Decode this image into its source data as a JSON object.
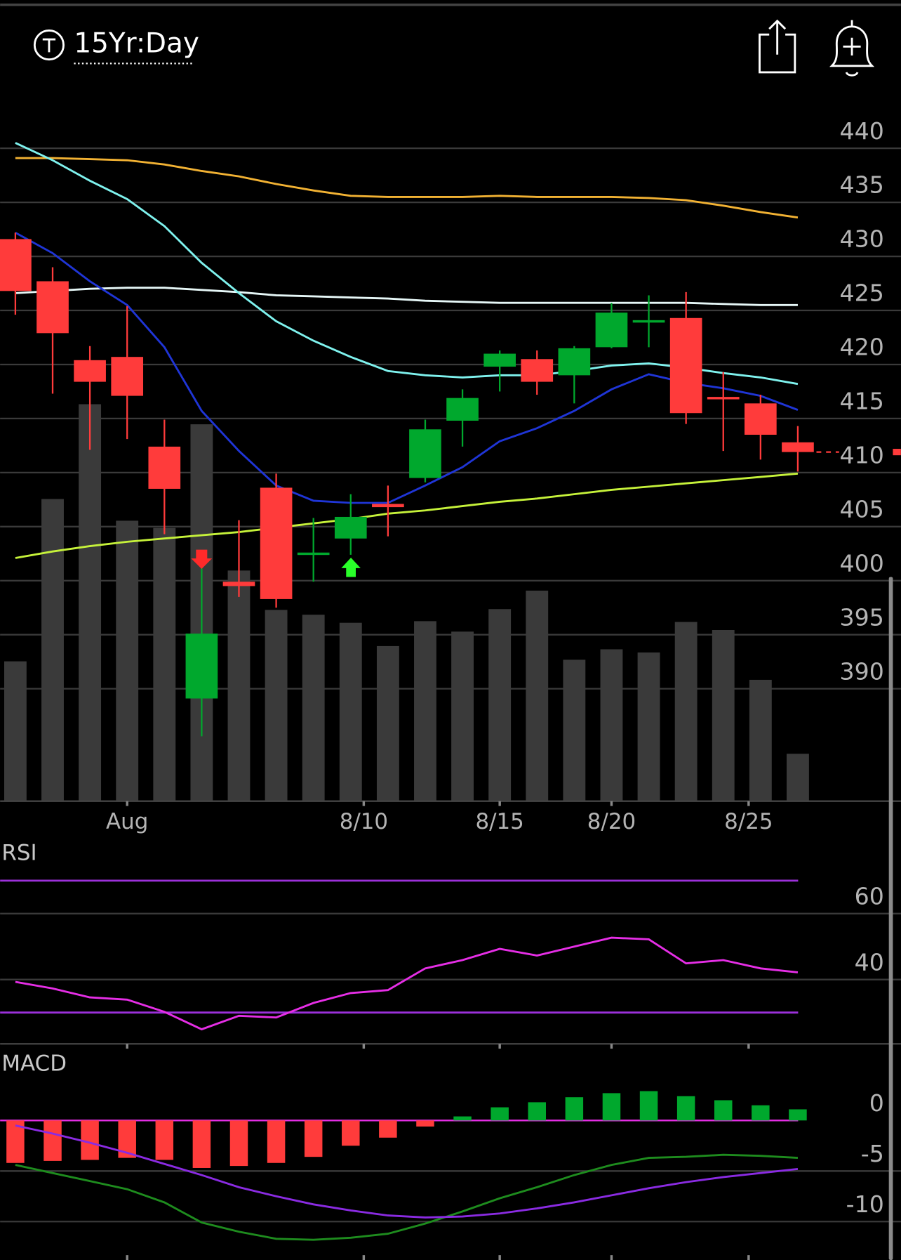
{
  "header": {
    "timeframe": "15Yr:Day"
  },
  "chart_data": [
    {
      "type": "candlestick",
      "x": [
        0,
        1,
        2,
        3,
        4,
        5,
        6,
        7,
        8,
        9,
        10,
        11,
        12,
        13,
        14,
        15,
        16,
        17,
        18,
        19,
        20,
        21
      ],
      "xlim": [
        -0.41,
        22
      ],
      "xticks": [
        {
          "value": 3,
          "label": "Aug"
        },
        {
          "value": 9.35,
          "label": "8/10"
        },
        {
          "value": 13,
          "label": "8/15"
        },
        {
          "value": 16,
          "label": "8/20"
        },
        {
          "value": 19.68,
          "label": "8/25"
        }
      ],
      "ylim": [
        379.6,
        444.8
      ],
      "yticks": [
        390,
        395,
        400,
        405,
        410,
        415,
        420,
        425,
        430,
        435,
        440
      ],
      "grid": true,
      "up_color": "#00a82d",
      "down_color": "#ff3b3b",
      "open": [
        431.6,
        427.7,
        420.4,
        420.7,
        412.4,
        389.1,
        399.9,
        408.6,
        402.4,
        403.9,
        407.1,
        409.5,
        414.8,
        419.8,
        420.5,
        419.0,
        421.6,
        423.9,
        424.3,
        417.0,
        416.4,
        412.8
      ],
      "high": [
        432.2,
        429.0,
        421.7,
        425.4,
        414.9,
        401.7,
        405.6,
        409.9,
        405.8,
        408.0,
        408.8,
        414.9,
        417.7,
        421.3,
        421.3,
        421.7,
        425.7,
        426.4,
        426.7,
        419.3,
        417.2,
        414.3
      ],
      "low": [
        424.6,
        417.3,
        412.1,
        413.1,
        404.3,
        385.6,
        398.5,
        397.5,
        399.9,
        402.4,
        404.1,
        409.1,
        412.4,
        417.5,
        417.2,
        416.4,
        421.5,
        421.6,
        414.5,
        412.0,
        411.2,
        410.1
      ],
      "close": [
        426.8,
        422.9,
        418.4,
        417.1,
        408.5,
        395.1,
        399.5,
        398.3,
        402.6,
        405.9,
        406.8,
        414.0,
        416.9,
        421.0,
        418.4,
        421.5,
        424.8,
        424.1,
        415.5,
        416.8,
        413.5,
        411.9
      ],
      "volume": {
        "color": "#3a3a3a",
        "values": [
          174,
          376,
          494,
          349,
          340,
          469,
          287,
          238,
          232,
          222,
          193,
          224,
          211,
          239,
          262,
          176,
          189,
          185,
          223,
          213,
          151,
          59
        ]
      },
      "lines": [
        {
          "color": "#f2b233",
          "values": [
            439.1,
            439.1,
            439.0,
            438.9,
            438.5,
            437.9,
            437.4,
            436.7,
            436.1,
            435.6,
            435.5,
            435.5,
            435.5,
            435.6,
            435.5,
            435.5,
            435.5,
            435.4,
            435.2,
            434.7,
            434.1,
            433.6
          ]
        },
        {
          "color": "#e6f7f7",
          "values": [
            426.6,
            426.8,
            427.0,
            427.1,
            427.1,
            426.9,
            426.7,
            426.4,
            426.3,
            426.2,
            426.1,
            425.9,
            425.8,
            425.7,
            425.7,
            425.7,
            425.7,
            425.7,
            425.7,
            425.6,
            425.5,
            425.5
          ]
        },
        {
          "color": "#7ff2ee",
          "values": [
            440.5,
            438.9,
            437.0,
            435.3,
            432.8,
            429.4,
            426.6,
            424.0,
            422.2,
            420.7,
            419.4,
            419.0,
            418.8,
            419.0,
            419.0,
            419.4,
            419.9,
            420.1,
            419.7,
            419.2,
            418.8,
            418.2
          ]
        },
        {
          "color": "#1f35d6",
          "values": [
            432.2,
            430.3,
            427.7,
            425.5,
            421.6,
            415.7,
            412.0,
            408.8,
            407.4,
            407.2,
            407.2,
            408.8,
            410.5,
            412.9,
            414.1,
            415.7,
            417.7,
            419.1,
            418.3,
            417.8,
            417.1,
            415.8
          ]
        },
        {
          "color": "#c6f23a",
          "values": [
            402.1,
            402.7,
            403.2,
            403.6,
            403.9,
            404.2,
            404.5,
            404.9,
            405.3,
            405.7,
            406.2,
            406.5,
            406.9,
            407.3,
            407.6,
            408.0,
            408.4,
            408.7,
            409.0,
            409.3,
            409.6,
            409.9
          ]
        }
      ]
    },
    {
      "type": "line",
      "title": "RSI",
      "ylim": [
        20.5,
        75.1
      ],
      "yticks": [
        40,
        60
      ],
      "levels": [
        30,
        70
      ],
      "level_color": "#9b30d9",
      "color": "#e62ee6",
      "values": [
        39.3,
        37.3,
        34.6,
        33.9,
        30.2,
        24.9,
        29.0,
        28.5,
        32.9,
        35.9,
        36.8,
        43.4,
        45.9,
        49.3,
        47.3,
        50.0,
        52.7,
        52.2,
        44.9,
        45.9,
        43.4,
        42.2
      ]
    },
    {
      "type": "macd",
      "title": "MACD",
      "ylim": [
        -13.8,
        7.1
      ],
      "yticks": [
        -10,
        -5,
        0
      ],
      "zero_color": "#e62ee6",
      "histogram": {
        "up_color": "#00a82d",
        "down_color": "#ff3b3b",
        "values": [
          -4.2,
          -4.0,
          -3.9,
          -3.7,
          -3.9,
          -4.7,
          -4.5,
          -4.2,
          -3.6,
          -2.5,
          -1.7,
          -0.6,
          0.4,
          1.3,
          1.8,
          2.3,
          2.7,
          2.9,
          2.4,
          2.0,
          1.5,
          1.1
        ]
      },
      "macd": {
        "color": "#1e8c1e",
        "values": [
          -4.4,
          -5.2,
          -6.0,
          -6.8,
          -8.1,
          -10.1,
          -11.0,
          -11.7,
          -11.8,
          -11.6,
          -11.2,
          -10.2,
          -9.0,
          -7.7,
          -6.6,
          -5.4,
          -4.4,
          -3.7,
          -3.6,
          -3.4,
          -3.5,
          -3.7
        ]
      },
      "signal": {
        "color": "#8a2be2",
        "values": [
          -0.5,
          -1.3,
          -2.2,
          -3.2,
          -4.3,
          -5.4,
          -6.6,
          -7.5,
          -8.3,
          -8.9,
          -9.4,
          -9.6,
          -9.5,
          -9.2,
          -8.7,
          -8.1,
          -7.4,
          -6.7,
          -6.1,
          -5.6,
          -5.2,
          -4.8
        ]
      }
    }
  ]
}
